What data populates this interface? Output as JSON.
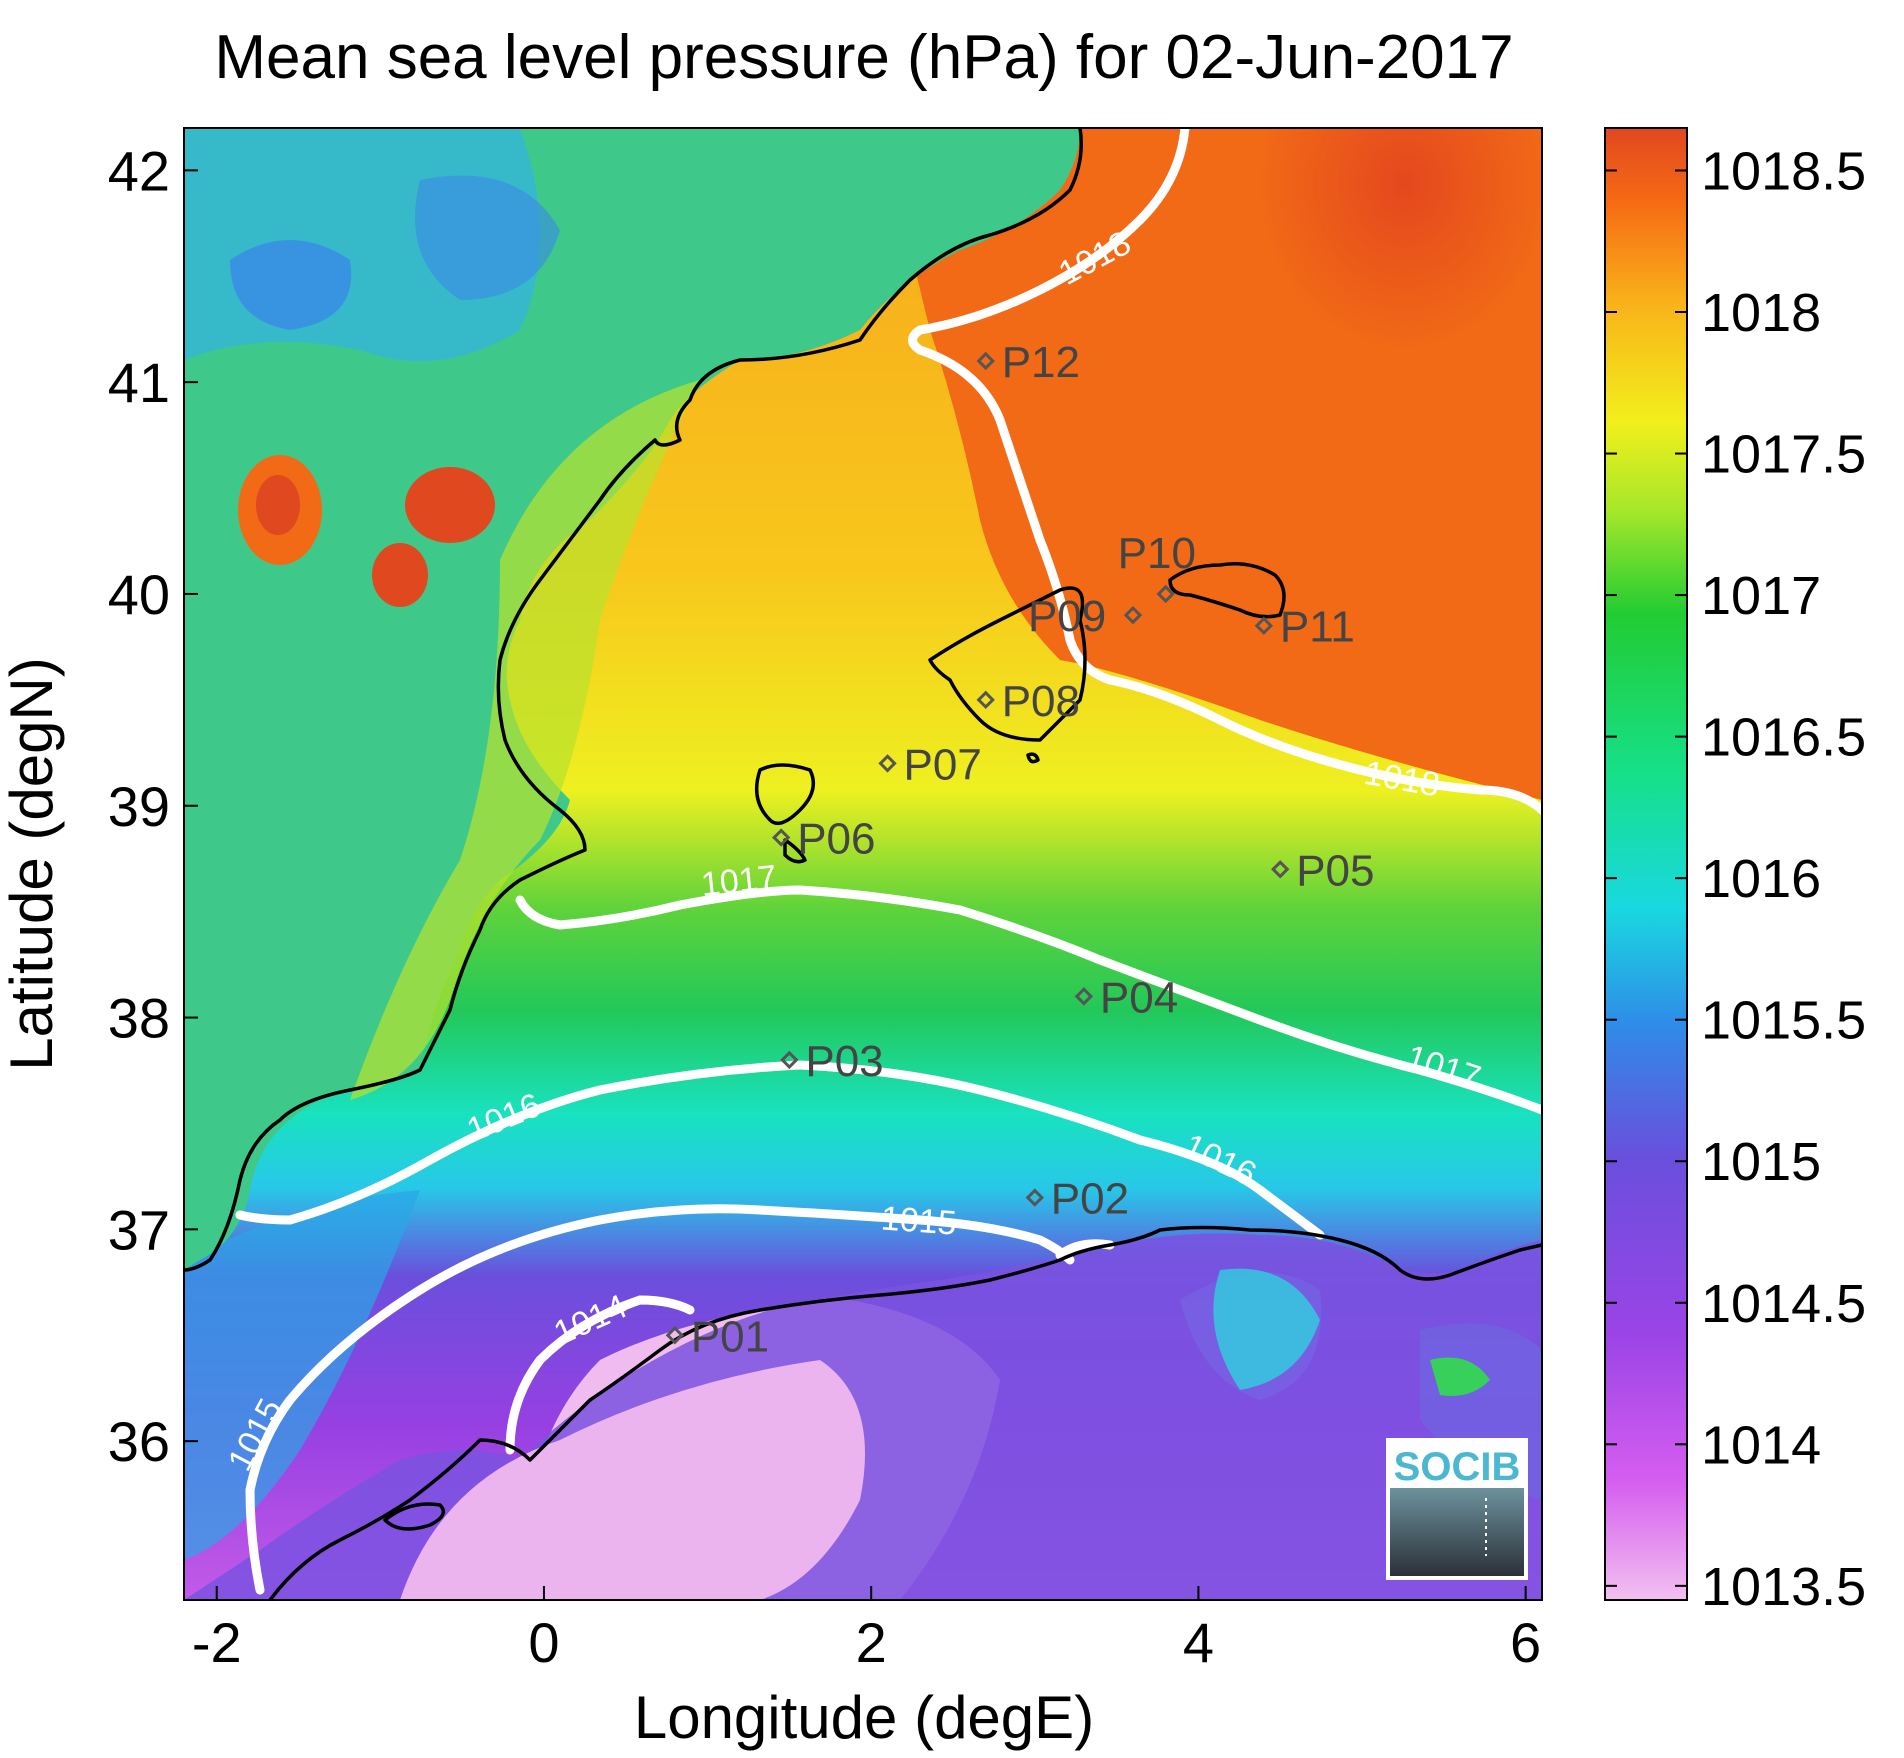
{
  "chart_data": {
    "type": "heatmap",
    "title": "Mean sea level pressure (hPa) for 02-Jun-2017",
    "xlabel": "Longitude (degE)",
    "ylabel": "Latitude (degN)",
    "xlim": [
      -2.2,
      6.1
    ],
    "ylim": [
      35.25,
      42.2
    ],
    "x_ticks": [
      "-2",
      "0",
      "2",
      "4",
      "6"
    ],
    "x_tick_values": [
      -2,
      0,
      2,
      4,
      6
    ],
    "y_ticks": [
      "36",
      "37",
      "38",
      "39",
      "40",
      "41",
      "42"
    ],
    "y_tick_values": [
      36,
      37,
      38,
      39,
      40,
      41,
      42
    ],
    "colorbar": {
      "ticks": [
        "1013.5",
        "1014",
        "1014.5",
        "1015",
        "1015.5",
        "1016",
        "1016.5",
        "1017",
        "1017.5",
        "1018",
        "1018.5"
      ],
      "tick_values": [
        1013.5,
        1014,
        1014.5,
        1015,
        1015.5,
        1016,
        1016.5,
        1017,
        1017.5,
        1018,
        1018.5
      ],
      "range": [
        1013.45,
        1018.65
      ]
    },
    "contours": [
      {
        "level": "1015",
        "label_count": 2
      },
      {
        "level": "1016",
        "label_count": 2
      },
      {
        "level": "1017",
        "label_count": 2
      },
      {
        "level": "1018",
        "label_count": 2
      },
      {
        "level": "1014",
        "label_count": 1
      }
    ],
    "points": [
      {
        "name": "P01",
        "lon": 0.8,
        "lat": 36.5
      },
      {
        "name": "P02",
        "lon": 3.0,
        "lat": 37.15
      },
      {
        "name": "P03",
        "lon": 1.5,
        "lat": 37.8
      },
      {
        "name": "P04",
        "lon": 3.3,
        "lat": 38.1
      },
      {
        "name": "P05",
        "lon": 4.5,
        "lat": 38.7
      },
      {
        "name": "P06",
        "lon": 1.45,
        "lat": 38.85
      },
      {
        "name": "P07",
        "lon": 2.1,
        "lat": 39.2
      },
      {
        "name": "P08",
        "lon": 2.7,
        "lat": 39.5
      },
      {
        "name": "P09",
        "lon": 3.6,
        "lat": 39.9
      },
      {
        "name": "P10",
        "lon": 3.8,
        "lat": 40.0
      },
      {
        "name": "P11",
        "lon": 4.4,
        "lat": 39.85
      },
      {
        "name": "P12",
        "lon": 2.7,
        "lat": 41.1
      }
    ],
    "grid": false,
    "colorbar_placement": "right"
  },
  "logo": {
    "text": "SOCIB",
    "icon": "socib-logo-icon"
  },
  "colors": {
    "contour": "#ffffff",
    "coastline": "#000000",
    "marker": "#555555",
    "logo_text": "#4bb7d0"
  }
}
